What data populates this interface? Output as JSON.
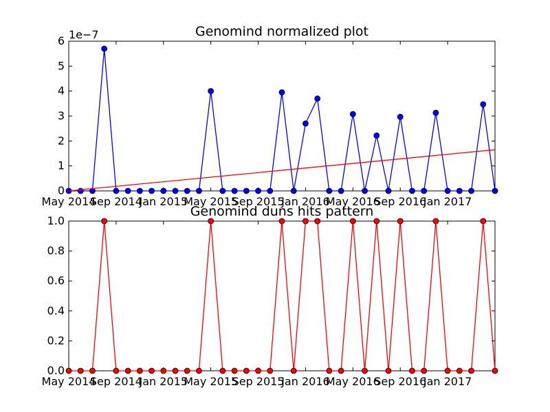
{
  "chart_data": [
    {
      "type": "line",
      "title": "Genomind normalized plot",
      "scale_label": "1e−7",
      "xlabel": "",
      "ylabel": "",
      "x": [
        "2014-05",
        "2014-06",
        "2014-07",
        "2014-08",
        "2014-09",
        "2014-10",
        "2014-11",
        "2014-12",
        "2015-01",
        "2015-02",
        "2015-03",
        "2015-04",
        "2015-05",
        "2015-06",
        "2015-07",
        "2015-08",
        "2015-09",
        "2015-10",
        "2015-11",
        "2015-12",
        "2016-01",
        "2016-02",
        "2016-03",
        "2016-04",
        "2016-05",
        "2016-06",
        "2016-07",
        "2016-08",
        "2016-09",
        "2016-10",
        "2016-11",
        "2016-12",
        "2017-01",
        "2017-02",
        "2017-03",
        "2017-04",
        "2017-05"
      ],
      "ylim": [
        0,
        6
      ],
      "yticks": [
        "0",
        "1",
        "2",
        "3",
        "4",
        "5",
        "6"
      ],
      "xtick_labels": [
        "May 2014",
        "Sep 2014",
        "Jan 2015",
        "May 2015",
        "Sep 2015",
        "Jan 2016",
        "May 2016",
        "Sep 2016",
        "Jan 2017"
      ],
      "series": [
        {
          "color": "#0000ff",
          "marker": "circle",
          "values": [
            0,
            0,
            0,
            5.7,
            0,
            0,
            0,
            0,
            0,
            0,
            0,
            0,
            4.0,
            0,
            0,
            0,
            0,
            0,
            3.95,
            0,
            2.7,
            3.7,
            0,
            0,
            3.08,
            0,
            2.22,
            0,
            2.97,
            0,
            0,
            3.13,
            0,
            0,
            0,
            3.47,
            0
          ]
        },
        {
          "color": "#ff0000",
          "marker": "none",
          "trend": true,
          "x": [
            "2014-05",
            "2017-05"
          ],
          "values": [
            0,
            1.65
          ]
        }
      ]
    },
    {
      "type": "line",
      "title": "Genomind duns hits pattern",
      "xlabel": "",
      "ylabel": "",
      "x": [
        "2014-05",
        "2014-06",
        "2014-07",
        "2014-08",
        "2014-09",
        "2014-10",
        "2014-11",
        "2014-12",
        "2015-01",
        "2015-02",
        "2015-03",
        "2015-04",
        "2015-05",
        "2015-06",
        "2015-07",
        "2015-08",
        "2015-09",
        "2015-10",
        "2015-11",
        "2015-12",
        "2016-01",
        "2016-02",
        "2016-03",
        "2016-04",
        "2016-05",
        "2016-06",
        "2016-07",
        "2016-08",
        "2016-09",
        "2016-10",
        "2016-11",
        "2016-12",
        "2017-01",
        "2017-02",
        "2017-03",
        "2017-04",
        "2017-05"
      ],
      "ylim": [
        0,
        1
      ],
      "yticks": [
        "0.0",
        "0.2",
        "0.4",
        "0.6",
        "0.8",
        "1.0"
      ],
      "xtick_labels": [
        "May 2014",
        "Sep 2014",
        "Jan 2015",
        "May 2015",
        "Sep 2015",
        "Jan 2016",
        "May 2016",
        "Sep 2016",
        "Jan 2017"
      ],
      "series": [
        {
          "color": "#ff0000",
          "marker": "circle",
          "values": [
            0,
            0,
            0,
            1,
            0,
            0,
            0,
            0,
            0,
            0,
            0,
            0,
            1,
            0,
            0,
            0,
            0,
            0,
            1,
            0,
            1,
            1,
            0,
            0,
            1,
            0,
            1,
            0,
            1,
            0,
            0,
            1,
            0,
            0,
            0,
            1,
            0
          ]
        }
      ]
    }
  ]
}
